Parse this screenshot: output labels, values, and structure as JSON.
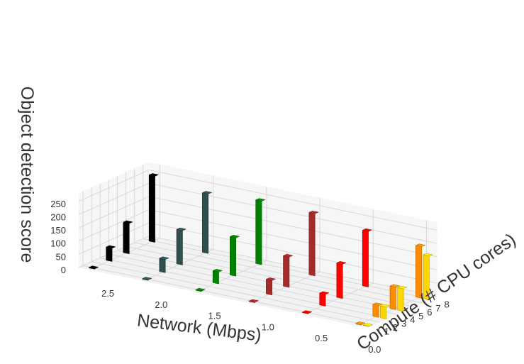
{
  "chart_data": {
    "type": "bar3d",
    "title": "",
    "xlabel": "Network (Mbps)",
    "ylabel": "Compute (# CPU cores)",
    "zlabel": "Object detection score",
    "x_ticks": [
      "0.0",
      "0.5",
      "1.0",
      "1.5",
      "2.0",
      "2.5"
    ],
    "y_ticks": [
      "1",
      "2",
      "3",
      "4",
      "5",
      "6",
      "7",
      "8"
    ],
    "z_ticks": [
      "0",
      "50",
      "100",
      "150",
      "200",
      "250"
    ],
    "zlim": [
      0,
      280
    ],
    "grid": true,
    "series": [
      {
        "network": 2.5,
        "color": "#000000",
        "values": [
          {
            "cores": 1,
            "score": 2
          },
          {
            "cores": 3,
            "score": 50
          },
          {
            "cores": 5,
            "score": 115
          },
          {
            "cores": 8,
            "score": 250
          }
        ]
      },
      {
        "network": 2.0,
        "color": "#2f4f4f",
        "values": [
          {
            "cores": 1,
            "score": 2
          },
          {
            "cores": 3,
            "score": 50
          },
          {
            "cores": 5,
            "score": 130
          },
          {
            "cores": 8,
            "score": 225
          }
        ]
      },
      {
        "network": 1.5,
        "color": "#008000",
        "values": [
          {
            "cores": 1,
            "score": 2
          },
          {
            "cores": 3,
            "score": 45
          },
          {
            "cores": 5,
            "score": 145
          },
          {
            "cores": 8,
            "score": 240
          }
        ]
      },
      {
        "network": 1.0,
        "color": "#a52a2a",
        "values": [
          {
            "cores": 1,
            "score": 2
          },
          {
            "cores": 3,
            "score": 55
          },
          {
            "cores": 5,
            "score": 115
          },
          {
            "cores": 8,
            "score": 235
          }
        ]
      },
      {
        "network": 0.5,
        "color": "#ff0000",
        "values": [
          {
            "cores": 1,
            "score": 2
          },
          {
            "cores": 3,
            "score": 45
          },
          {
            "cores": 5,
            "score": 130
          },
          {
            "cores": 8,
            "score": 210
          }
        ]
      },
      {
        "network": 0.0,
        "color": "#ff8c00",
        "values": [
          {
            "cores": 1,
            "score": 2
          },
          {
            "cores": 3,
            "score": 45
          },
          {
            "cores": 5,
            "score": 85
          },
          {
            "cores": 8,
            "score": 195
          }
        ]
      },
      {
        "network": 0.0,
        "color": "#ffd700",
        "values": [
          {
            "cores": 1,
            "score": 2
          },
          {
            "cores": 3,
            "score": 45
          },
          {
            "cores": 5,
            "score": 85
          },
          {
            "cores": 8,
            "score": 165
          }
        ]
      }
    ]
  }
}
